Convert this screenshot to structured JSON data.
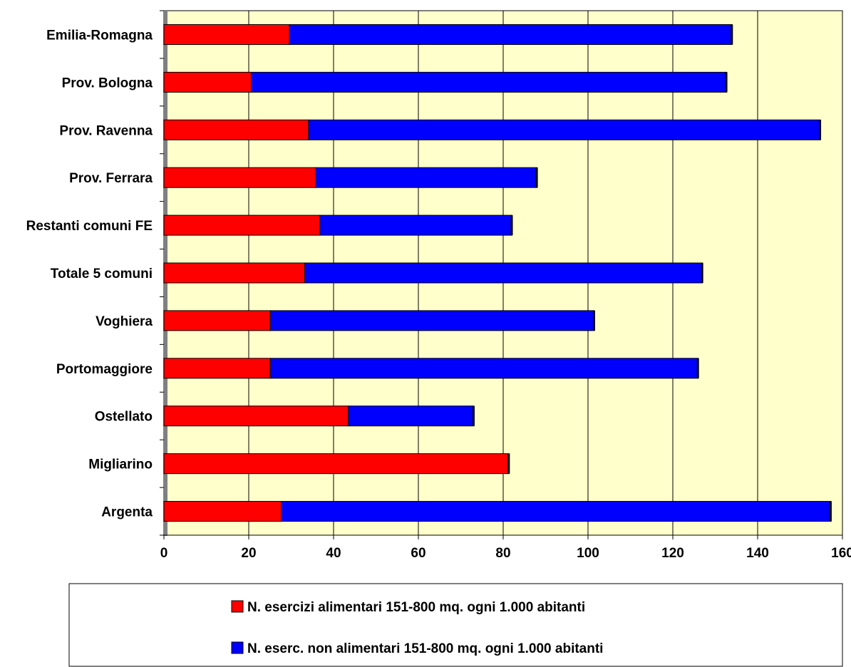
{
  "chart_data": {
    "type": "bar",
    "orientation": "horizontal",
    "stacked": true,
    "categories": [
      "Emilia-Romagna",
      "Prov. Bologna",
      "Prov. Ravenna",
      "Prov. Ferrara",
      "Restanti comuni FE",
      "Totale 5 comuni",
      "Voghiera",
      "Portomaggiore",
      "Ostellato",
      "Migliarino",
      "Argenta"
    ],
    "series": [
      {
        "name": "N. esercizi alimentari 151-800 mq. ogni 1.000 abitanti",
        "color": "#ff0000",
        "values": [
          29.6,
          20.6,
          34.1,
          35.8,
          36.8,
          33.2,
          25.1,
          25.1,
          43.5,
          81.4,
          27.7
        ]
      },
      {
        "name": "N. eserc. non alimentari 151-800 mq. ogni 1.000 abitanti",
        "color": "#0000ff",
        "values": [
          104.4,
          112.1,
          120.7,
          52.2,
          45.3,
          93.8,
          76.4,
          100.9,
          29.6,
          0,
          129.6
        ]
      }
    ],
    "xlim": [
      0,
      160
    ],
    "xticks": [
      "0",
      "20",
      "40",
      "60",
      "80",
      "100",
      "120",
      "140",
      "160"
    ],
    "grid": true,
    "legend_position": "bottom",
    "colors": {
      "plot_background": "#ffffcc",
      "grid": "#000000",
      "axis_strip": "#808080"
    }
  }
}
